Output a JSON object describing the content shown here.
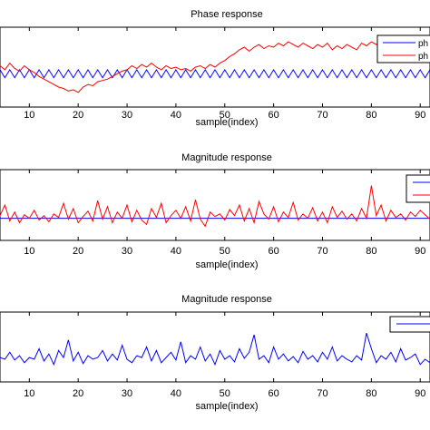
{
  "chart_data": [
    {
      "type": "line",
      "title": "Phase response",
      "xlabel": "sample(index)",
      "ylabel": "",
      "xlim": [
        4,
        92
      ],
      "ylim": [
        -2.5,
        3.5
      ],
      "xticks": [
        10,
        20,
        30,
        40,
        50,
        60,
        70,
        80,
        90
      ],
      "x": [
        4,
        5,
        6,
        7,
        8,
        9,
        10,
        11,
        12,
        13,
        14,
        15,
        16,
        17,
        18,
        19,
        20,
        21,
        22,
        23,
        24,
        25,
        26,
        27,
        28,
        29,
        30,
        31,
        32,
        33,
        34,
        35,
        36,
        37,
        38,
        39,
        40,
        41,
        42,
        43,
        44,
        45,
        46,
        47,
        48,
        49,
        50,
        51,
        52,
        53,
        54,
        55,
        56,
        57,
        58,
        59,
        60,
        61,
        62,
        63,
        64,
        65,
        66,
        67,
        68,
        69,
        70,
        71,
        72,
        73,
        74,
        75,
        76,
        77,
        78,
        79,
        80,
        81,
        82,
        83,
        84,
        85,
        86,
        87,
        88,
        89,
        90,
        91,
        92
      ],
      "legend": {
        "placement": "top-right",
        "entries": [
          "ph",
          "ph"
        ]
      },
      "series": [
        {
          "color": "#0000ff",
          "values": [
            0.3,
            -0.3,
            0.3,
            -0.3,
            0.3,
            -0.3,
            0.3,
            -0.3,
            0.3,
            -0.3,
            0.3,
            -0.3,
            0.3,
            -0.3,
            0.3,
            -0.3,
            0.3,
            -0.3,
            0.3,
            -0.3,
            0.3,
            -0.3,
            0.3,
            -0.3,
            0.3,
            -0.3,
            0.3,
            -0.3,
            0.3,
            -0.3,
            0.3,
            -0.3,
            0.3,
            -0.3,
            0.3,
            -0.3,
            0.3,
            -0.3,
            0.3,
            -0.3,
            0.3,
            -0.3,
            0.3,
            -0.3,
            0.3,
            -0.3,
            0.3,
            -0.3,
            0.3,
            -0.3,
            0.3,
            -0.3,
            0.3,
            -0.3,
            0.3,
            -0.3,
            0.3,
            -0.3,
            0.3,
            -0.3,
            0.3,
            -0.3,
            0.3,
            -0.3,
            0.3,
            -0.3,
            0.3,
            -0.3,
            0.3,
            -0.3,
            0.3,
            -0.3,
            0.3,
            -0.3,
            0.3,
            -0.3,
            0.3,
            -0.3,
            0.3,
            -0.3,
            0.3,
            -0.3,
            0.3,
            -0.3,
            0.3,
            -0.3,
            0.3,
            -0.3,
            0.3
          ]
        },
        {
          "color": "#ff0000",
          "values": [
            0.6,
            0.3,
            0.8,
            0.4,
            0.2,
            0.6,
            0.3,
            0.1,
            -0.2,
            -0.4,
            -0.6,
            -0.8,
            -1.0,
            -1.1,
            -1.3,
            -1.2,
            -1.4,
            -1.0,
            -0.8,
            -0.9,
            -0.6,
            -0.5,
            -0.4,
            -0.2,
            0.0,
            0.2,
            0.3,
            0.6,
            0.4,
            0.7,
            0.5,
            0.8,
            0.5,
            0.3,
            0.6,
            0.4,
            0.5,
            0.3,
            0.4,
            0.2,
            0.5,
            0.6,
            0.4,
            0.7,
            0.5,
            0.8,
            1.0,
            1.3,
            1.5,
            1.8,
            2.0,
            1.7,
            2.0,
            2.2,
            1.9,
            2.1,
            2.0,
            2.3,
            2.1,
            2.4,
            2.2,
            2.0,
            2.3,
            2.1,
            1.9,
            2.2,
            2.0,
            2.3,
            1.8,
            2.1,
            1.9,
            2.2,
            2.0,
            1.8,
            2.3,
            2.1,
            2.4,
            2.2,
            2.5,
            2.2,
            2.6,
            2.3,
            2.1,
            2.4,
            2.2,
            1.9,
            1.6,
            1.3,
            1.5
          ]
        }
      ]
    },
    {
      "type": "line",
      "title": "Magnitude response",
      "xlabel": "sample(index)",
      "ylabel": "",
      "xlim": [
        4,
        92
      ],
      "ylim": [
        -1,
        7
      ],
      "xticks": [
        10,
        20,
        30,
        40,
        50,
        60,
        70,
        80,
        90
      ],
      "x": [
        4,
        5,
        6,
        7,
        8,
        9,
        10,
        11,
        12,
        13,
        14,
        15,
        16,
        17,
        18,
        19,
        20,
        21,
        22,
        23,
        24,
        25,
        26,
        27,
        28,
        29,
        30,
        31,
        32,
        33,
        34,
        35,
        36,
        37,
        38,
        39,
        40,
        41,
        42,
        43,
        44,
        45,
        46,
        47,
        48,
        49,
        50,
        51,
        52,
        53,
        54,
        55,
        56,
        57,
        58,
        59,
        60,
        61,
        62,
        63,
        64,
        65,
        66,
        67,
        68,
        69,
        70,
        71,
        72,
        73,
        74,
        75,
        76,
        77,
        78,
        79,
        80,
        81,
        82,
        83,
        84,
        85,
        86,
        87,
        88,
        89,
        90,
        91,
        92
      ],
      "legend": {
        "placement": "top-right",
        "entries": [
          "",
          ""
        ]
      },
      "series": [
        {
          "color": "#0000ff",
          "values": [
            1.5,
            1.5,
            1.5,
            1.5,
            1.5,
            1.5,
            1.5,
            1.5,
            1.5,
            1.5,
            1.5,
            1.5,
            1.5,
            1.5,
            1.5,
            1.5,
            1.5,
            1.5,
            1.5,
            1.5,
            1.5,
            1.5,
            1.5,
            1.5,
            1.5,
            1.5,
            1.5,
            1.5,
            1.5,
            1.5,
            1.5,
            1.5,
            1.5,
            1.5,
            1.5,
            1.5,
            1.5,
            1.5,
            1.5,
            1.5,
            1.5,
            1.5,
            1.5,
            1.5,
            1.5,
            1.5,
            1.5,
            1.5,
            1.5,
            1.5,
            1.5,
            1.5,
            1.5,
            1.5,
            1.5,
            1.5,
            1.5,
            1.5,
            1.5,
            1.5,
            1.5,
            1.5,
            1.5,
            1.5,
            1.5,
            1.5,
            1.5,
            1.5,
            1.5,
            1.5,
            1.5,
            1.5,
            1.5,
            1.5,
            1.5,
            1.5,
            1.5,
            1.5,
            1.5,
            1.5,
            1.5,
            1.5,
            1.5,
            1.5,
            1.5,
            1.5,
            1.5,
            1.5,
            1.5
          ]
        },
        {
          "color": "#ff0000",
          "values": [
            1.8,
            3.0,
            1.2,
            2.2,
            1.0,
            1.9,
            1.5,
            2.4,
            1.3,
            1.8,
            1.1,
            2.0,
            1.6,
            3.2,
            1.4,
            2.6,
            1.0,
            1.7,
            2.3,
            1.2,
            3.5,
            1.4,
            2.8,
            1.0,
            2.2,
            1.5,
            3.0,
            1.1,
            2.4,
            1.3,
            0.8,
            2.6,
            1.6,
            3.2,
            1.0,
            1.8,
            2.4,
            1.5,
            2.8,
            1.2,
            3.6,
            1.4,
            0.6,
            2.2,
            1.7,
            2.0,
            1.3,
            2.5,
            1.8,
            3.0,
            1.2,
            2.6,
            1.0,
            3.4,
            2.0,
            1.4,
            2.8,
            1.1,
            2.2,
            1.6,
            3.3,
            1.3,
            2.0,
            1.5,
            2.7,
            1.2,
            2.2,
            1.0,
            2.8,
            1.6,
            2.3,
            1.4,
            2.0,
            1.2,
            2.6,
            1.5,
            5.2,
            1.8,
            3.0,
            1.2,
            2.4,
            1.6,
            2.0,
            1.3,
            2.2,
            1.7,
            2.4,
            1.9,
            1.4
          ]
        }
      ]
    },
    {
      "type": "line",
      "title": "Magnitude response",
      "xlabel": "sample(index)",
      "ylabel": "",
      "xlim": [
        4,
        92
      ],
      "ylim": [
        -1,
        7
      ],
      "xticks": [
        10,
        20,
        30,
        40,
        50,
        60,
        70,
        80,
        90
      ],
      "x": [
        4,
        5,
        6,
        7,
        8,
        9,
        10,
        11,
        12,
        13,
        14,
        15,
        16,
        17,
        18,
        19,
        20,
        21,
        22,
        23,
        24,
        25,
        26,
        27,
        28,
        29,
        30,
        31,
        32,
        33,
        34,
        35,
        36,
        37,
        38,
        39,
        40,
        41,
        42,
        43,
        44,
        45,
        46,
        47,
        48,
        49,
        50,
        51,
        52,
        53,
        54,
        55,
        56,
        57,
        58,
        59,
        60,
        61,
        62,
        63,
        64,
        65,
        66,
        67,
        68,
        69,
        70,
        71,
        72,
        73,
        74,
        75,
        76,
        77,
        78,
        79,
        80,
        81,
        82,
        83,
        84,
        85,
        86,
        87,
        88,
        89,
        90,
        91,
        92
      ],
      "legend": {
        "placement": "top-right",
        "entries": [
          ""
        ]
      },
      "series": [
        {
          "color": "#0000ff",
          "values": [
            1.8,
            1.6,
            2.4,
            1.5,
            2.0,
            1.2,
            1.8,
            1.6,
            2.8,
            1.4,
            2.2,
            1.0,
            2.6,
            1.8,
            3.8,
            1.4,
            2.4,
            1.1,
            2.0,
            1.6,
            1.8,
            2.6,
            1.4,
            2.2,
            1.5,
            3.2,
            1.6,
            1.2,
            2.0,
            1.8,
            3.0,
            1.4,
            2.6,
            1.2,
            1.8,
            2.4,
            1.5,
            3.6,
            1.2,
            2.0,
            1.6,
            3.0,
            1.4,
            2.2,
            1.0,
            2.6,
            1.6,
            2.0,
            1.3,
            2.8,
            1.7,
            2.4,
            4.4,
            1.6,
            2.0,
            1.2,
            3.0,
            1.6,
            2.2,
            1.4,
            1.9,
            1.2,
            2.5,
            1.6,
            2.0,
            1.3,
            2.4,
            1.6,
            3.0,
            1.4,
            2.0,
            1.6,
            1.3,
            2.0,
            1.5,
            4.6,
            2.8,
            1.2,
            2.0,
            1.6,
            2.4,
            1.3,
            2.8,
            1.5,
            1.8,
            2.2,
            1.0,
            1.6,
            1.2
          ]
        }
      ]
    }
  ]
}
